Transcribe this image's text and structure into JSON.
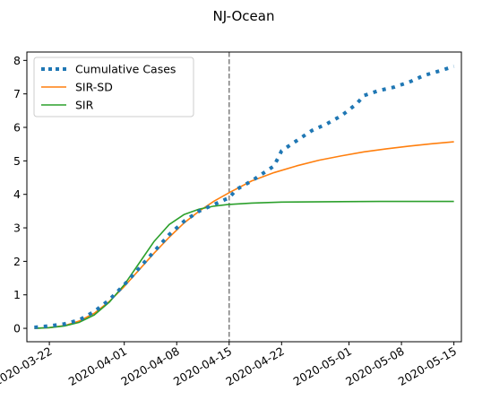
{
  "chart_data": {
    "type": "line",
    "title": "NJ-Ocean",
    "xlabel": "",
    "ylabel": "",
    "x_range": [
      "2020-03-19",
      "2020-05-16"
    ],
    "ylim": [
      -0.4,
      8.25
    ],
    "yticks": [
      0,
      1,
      2,
      3,
      4,
      5,
      6,
      7,
      8
    ],
    "xticks": [
      "2020-03-22",
      "2020-04-01",
      "2020-04-08",
      "2020-04-15",
      "2020-04-22",
      "2020-05-01",
      "2020-05-08",
      "2020-05-15"
    ],
    "grid": false,
    "legend_position": "top-left",
    "vline": {
      "x": "2020-04-15",
      "color": "#7f7f7f",
      "style": "dashed"
    },
    "series": [
      {
        "name": "Cumulative Cases",
        "color": "#1f77b4",
        "style": "dotted",
        "points": [
          [
            "2020-03-20",
            0.03
          ],
          [
            "2020-03-22",
            0.07
          ],
          [
            "2020-03-24",
            0.13
          ],
          [
            "2020-03-26",
            0.25
          ],
          [
            "2020-03-28",
            0.5
          ],
          [
            "2020-03-30",
            0.85
          ],
          [
            "2020-04-01",
            1.3
          ],
          [
            "2020-04-03",
            1.8
          ],
          [
            "2020-04-05",
            2.3
          ],
          [
            "2020-04-07",
            2.8
          ],
          [
            "2020-04-09",
            3.2
          ],
          [
            "2020-04-11",
            3.5
          ],
          [
            "2020-04-13",
            3.7
          ],
          [
            "2020-04-15",
            3.9
          ],
          [
            "2020-04-16",
            4.15
          ],
          [
            "2020-04-18",
            4.4
          ],
          [
            "2020-04-20",
            4.7
          ],
          [
            "2020-04-21",
            4.85
          ],
          [
            "2020-04-22",
            5.3
          ],
          [
            "2020-04-24",
            5.6
          ],
          [
            "2020-04-26",
            5.9
          ],
          [
            "2020-04-28",
            6.1
          ],
          [
            "2020-04-30",
            6.35
          ],
          [
            "2020-05-02",
            6.7
          ],
          [
            "2020-05-03",
            6.95
          ],
          [
            "2020-05-05",
            7.1
          ],
          [
            "2020-05-07",
            7.2
          ],
          [
            "2020-05-09",
            7.35
          ],
          [
            "2020-05-11",
            7.55
          ],
          [
            "2020-05-13",
            7.68
          ],
          [
            "2020-05-15",
            7.82
          ]
        ]
      },
      {
        "name": "SIR-SD",
        "color": "#ff7f0e",
        "style": "solid",
        "points": [
          [
            "2020-03-20",
            0.0
          ],
          [
            "2020-03-22",
            0.02
          ],
          [
            "2020-03-24",
            0.08
          ],
          [
            "2020-03-26",
            0.22
          ],
          [
            "2020-03-28",
            0.45
          ],
          [
            "2020-03-30",
            0.8
          ],
          [
            "2020-04-01",
            1.25
          ],
          [
            "2020-04-03",
            1.75
          ],
          [
            "2020-04-05",
            2.25
          ],
          [
            "2020-04-07",
            2.72
          ],
          [
            "2020-04-09",
            3.15
          ],
          [
            "2020-04-11",
            3.5
          ],
          [
            "2020-04-13",
            3.8
          ],
          [
            "2020-04-15",
            4.05
          ],
          [
            "2020-04-18",
            4.4
          ],
          [
            "2020-04-21",
            4.65
          ],
          [
            "2020-04-24",
            4.85
          ],
          [
            "2020-04-27",
            5.02
          ],
          [
            "2020-04-30",
            5.15
          ],
          [
            "2020-05-03",
            5.27
          ],
          [
            "2020-05-06",
            5.36
          ],
          [
            "2020-05-09",
            5.44
          ],
          [
            "2020-05-12",
            5.51
          ],
          [
            "2020-05-15",
            5.57
          ]
        ]
      },
      {
        "name": "SIR",
        "color": "#2ca02c",
        "style": "solid",
        "points": [
          [
            "2020-03-20",
            0.0
          ],
          [
            "2020-03-22",
            0.02
          ],
          [
            "2020-03-24",
            0.07
          ],
          [
            "2020-03-26",
            0.18
          ],
          [
            "2020-03-28",
            0.4
          ],
          [
            "2020-03-30",
            0.78
          ],
          [
            "2020-04-01",
            1.3
          ],
          [
            "2020-04-03",
            1.95
          ],
          [
            "2020-04-05",
            2.6
          ],
          [
            "2020-04-07",
            3.1
          ],
          [
            "2020-04-09",
            3.4
          ],
          [
            "2020-04-11",
            3.56
          ],
          [
            "2020-04-13",
            3.65
          ],
          [
            "2020-04-15",
            3.7
          ],
          [
            "2020-04-18",
            3.74
          ],
          [
            "2020-04-22",
            3.77
          ],
          [
            "2020-04-28",
            3.78
          ],
          [
            "2020-05-05",
            3.79
          ],
          [
            "2020-05-15",
            3.79
          ]
        ]
      }
    ]
  }
}
